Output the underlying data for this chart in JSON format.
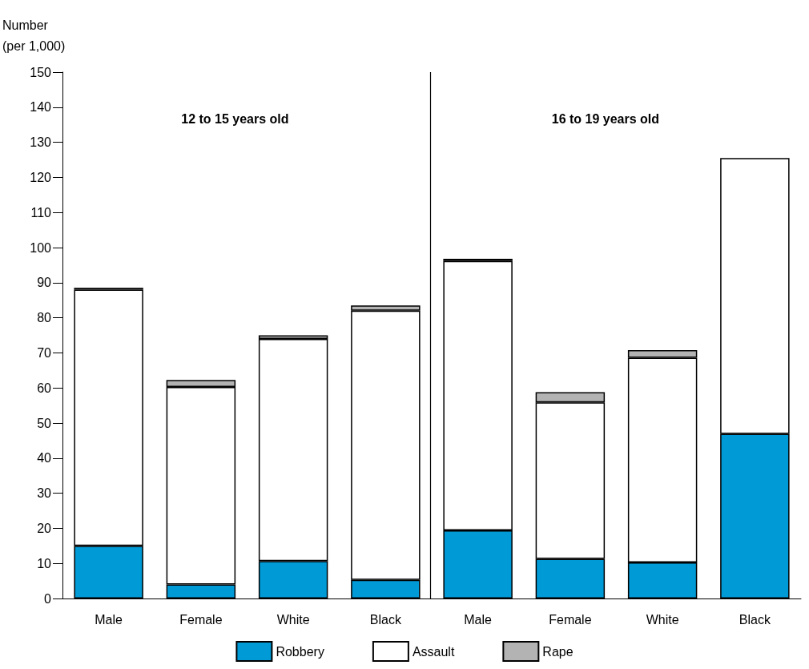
{
  "chart_data": {
    "type": "bar",
    "stacked": true,
    "ylabel": "Number\n(per 1,000)",
    "categories": [
      "Male",
      "Female",
      "White",
      "Black",
      "Male",
      "Female",
      "White",
      "Black"
    ],
    "series": [
      {
        "name": "Robbery",
        "color": "#009ad6",
        "values": [
          15,
          4,
          10.7,
          5.3,
          19.4,
          11.3,
          10.3,
          46.9
        ]
      },
      {
        "name": "Assault",
        "color": "#ffffff",
        "values": [
          73,
          56.3,
          63.3,
          76.7,
          76.8,
          44.6,
          58.3,
          78.6
        ]
      },
      {
        "name": "Rape",
        "color": "#b3b3b3",
        "values": [
          0.5,
          2,
          1,
          1.5,
          0.6,
          2.9,
          2.2,
          null
        ]
      }
    ],
    "ylim": [
      0,
      150
    ],
    "yticks": [
      0,
      10,
      20,
      30,
      40,
      50,
      60,
      70,
      80,
      90,
      100,
      110,
      120,
      130,
      140,
      150
    ],
    "annotations": [
      "12 to 15 years old",
      "16 to 19 years old"
    ],
    "grid": false,
    "legend": "bottom"
  }
}
